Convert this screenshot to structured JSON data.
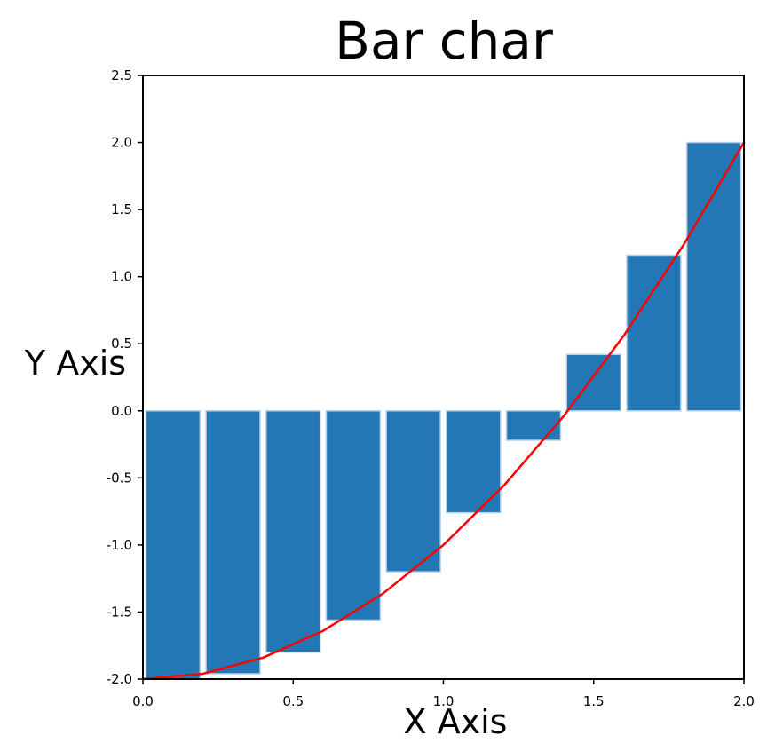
{
  "chart_data": {
    "type": "bar",
    "title": "Bar char",
    "xlabel": "X Axis",
    "ylabel": "Y Axis",
    "xlim": [
      0.0,
      2.0
    ],
    "ylim": [
      -2.0,
      2.5
    ],
    "x_ticks": [
      "0.0",
      "0.5",
      "1.0",
      "1.5",
      "2.0"
    ],
    "y_ticks": [
      "2.5",
      "2.0",
      "1.5",
      "1.0",
      "0.5",
      "0.0",
      "-0.5",
      "-1.0",
      "-1.5",
      "-2.0"
    ],
    "grid": false,
    "bar_width": 0.18,
    "bar_color": "#2377b4",
    "bars": [
      {
        "x": 0.1,
        "value": -2.0
      },
      {
        "x": 0.3,
        "value": -1.96
      },
      {
        "x": 0.5,
        "value": -1.8
      },
      {
        "x": 0.7,
        "value": -1.56
      },
      {
        "x": 0.9,
        "value": -1.2
      },
      {
        "x": 1.1,
        "value": -0.76
      },
      {
        "x": 1.3,
        "value": -0.22
      },
      {
        "x": 1.5,
        "value": 0.42
      },
      {
        "x": 1.7,
        "value": 1.16
      },
      {
        "x": 1.9,
        "value": 2.0
      }
    ],
    "line_color": "#ff0000",
    "line": [
      {
        "x": 0.0,
        "y": -2.0
      },
      {
        "x": 0.2,
        "y": -1.96
      },
      {
        "x": 0.4,
        "y": -1.84
      },
      {
        "x": 0.6,
        "y": -1.64
      },
      {
        "x": 0.8,
        "y": -1.36
      },
      {
        "x": 1.0,
        "y": -1.0
      },
      {
        "x": 1.2,
        "y": -0.56
      },
      {
        "x": 1.4,
        "y": -0.04
      },
      {
        "x": 1.6,
        "y": 0.56
      },
      {
        "x": 1.8,
        "y": 1.24
      },
      {
        "x": 2.0,
        "y": 2.0
      }
    ]
  }
}
